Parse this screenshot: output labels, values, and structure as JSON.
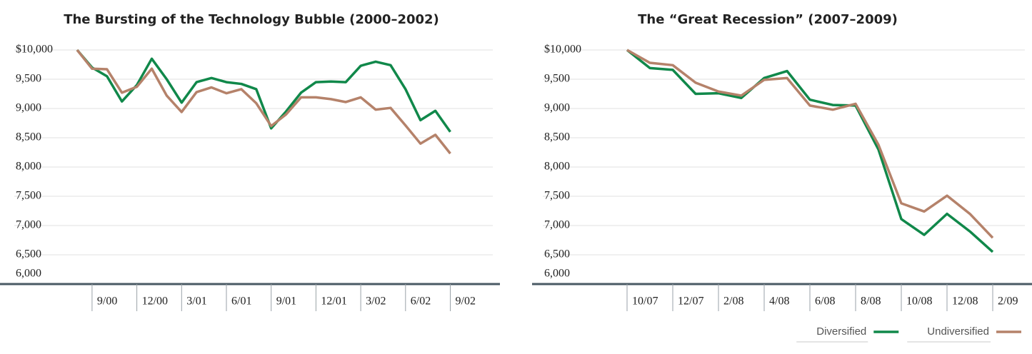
{
  "chart_data": [
    {
      "type": "line",
      "title": "The Bursting of the Technology Bubble (2000–2002)",
      "categories": [
        null,
        "9/00",
        null,
        null,
        "12/00",
        null,
        null,
        "3/01",
        null,
        null,
        "6/01",
        null,
        null,
        "9/01",
        null,
        null,
        "12/01",
        null,
        null,
        "3/02",
        null,
        null,
        "6/02",
        null,
        null,
        "9/02"
      ],
      "series": [
        {
          "color": "#10884a",
          "values": [
            10000,
            9700,
            9550,
            9120,
            9400,
            9850,
            9500,
            9100,
            9450,
            9520,
            9450,
            9420,
            9330,
            8660,
            8950,
            9270,
            9450,
            9460,
            9450,
            9730,
            9800,
            9740,
            9330,
            8800,
            8960,
            8600
          ]
        },
        {
          "color": "#b5826a",
          "values": [
            10000,
            9680,
            9670,
            9270,
            9370,
            9680,
            9220,
            8940,
            9280,
            9360,
            9260,
            9330,
            9090,
            8700,
            8900,
            9190,
            9190,
            9160,
            9110,
            9190,
            8980,
            9010,
            8710,
            8400,
            8550,
            8230
          ]
        }
      ],
      "ylim": [
        6000,
        10000
      ],
      "yticks": [
        {
          "value": 6000,
          "label": "6,000"
        },
        {
          "value": 6500,
          "label": "6,500"
        },
        {
          "value": 7000,
          "label": "7,000"
        },
        {
          "value": 7500,
          "label": "7,500"
        },
        {
          "value": 8000,
          "label": "8,000"
        },
        {
          "value": 8500,
          "label": "8,500"
        },
        {
          "value": 9000,
          "label": "9,000"
        },
        {
          "value": 9500,
          "label": "9,500"
        },
        {
          "value": 10000,
          "label": "$10,000"
        }
      ],
      "grid": true
    },
    {
      "type": "line",
      "title": "The “Great Recession” (2007–2009)",
      "categories": [
        "10/07",
        null,
        "12/07",
        null,
        "2/08",
        null,
        "4/08",
        null,
        "6/08",
        null,
        "8/08",
        null,
        "10/08",
        null,
        "12/08",
        null,
        "2/09"
      ],
      "series": [
        {
          "name": "Diversified",
          "color": "#10884a",
          "values": [
            10000,
            9690,
            9660,
            9250,
            9260,
            9180,
            9520,
            9640,
            9150,
            9060,
            9050,
            8300,
            7110,
            6840,
            7200,
            6900,
            6550
          ]
        },
        {
          "name": "Undiversified",
          "color": "#b5826a",
          "values": [
            10000,
            9780,
            9740,
            9440,
            9290,
            9220,
            9490,
            9520,
            9050,
            8980,
            9080,
            8380,
            7380,
            7240,
            7510,
            7200,
            6790
          ]
        }
      ],
      "ylim": [
        6000,
        10000
      ],
      "yticks": [
        {
          "value": 6000,
          "label": "6,000"
        },
        {
          "value": 6500,
          "label": "6,500"
        },
        {
          "value": 7000,
          "label": "7,000"
        },
        {
          "value": 7500,
          "label": "7,500"
        },
        {
          "value": 8000,
          "label": "8,000"
        },
        {
          "value": 8500,
          "label": "8,500"
        },
        {
          "value": 9000,
          "label": "9,000"
        },
        {
          "value": 9500,
          "label": "9,500"
        },
        {
          "value": 10000,
          "label": "$10,000"
        }
      ],
      "grid": true,
      "legend": "bottom-right"
    }
  ]
}
